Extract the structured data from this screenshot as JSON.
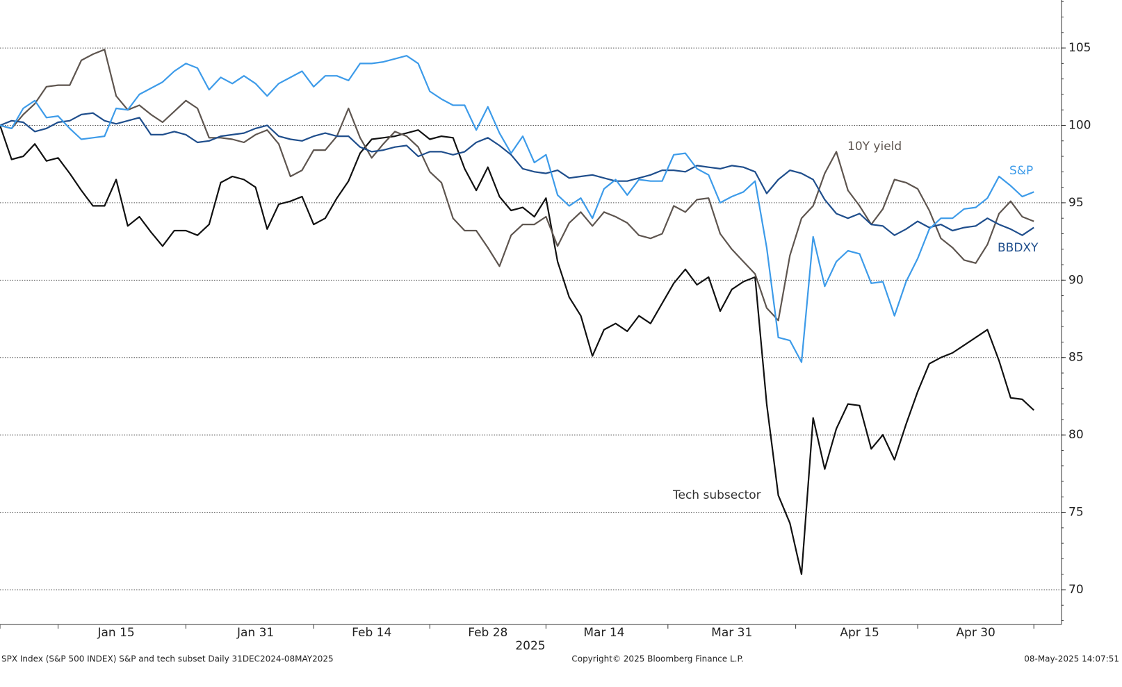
{
  "chart_data": {
    "type": "line",
    "x_label": "2025",
    "footer_left": "SPX Index (S&P 500 INDEX) S&P and tech subset  Daily 31DEC2024-08MAY2025",
    "footer_center": "Copyright© 2025 Bloomberg Finance L.P.",
    "footer_right": "08-May-2025 14:07:51",
    "categories": [
      null,
      null,
      null,
      null,
      null,
      null,
      null,
      null,
      null,
      null,
      "Jan 15",
      null,
      null,
      null,
      null,
      null,
      null,
      null,
      null,
      null,
      null,
      null,
      "Jan 31",
      null,
      null,
      null,
      null,
      null,
      null,
      null,
      null,
      null,
      "Feb 14",
      null,
      null,
      null,
      null,
      null,
      null,
      null,
      null,
      null,
      "Feb 28",
      null,
      null,
      null,
      null,
      null,
      null,
      null,
      null,
      null,
      "Mar 14",
      null,
      null,
      null,
      null,
      null,
      null,
      null,
      null,
      null,
      null,
      "Mar 31",
      null,
      null,
      null,
      null,
      null,
      null,
      null,
      null,
      null,
      null,
      "Apr 15",
      null,
      null,
      null,
      null,
      null,
      null,
      null,
      null,
      null,
      "Apr 30",
      null,
      null,
      null,
      null,
      null
    ],
    "series": [
      {
        "name": "S&P",
        "color": "#3d9be9",
        "values": [
          100,
          99.8,
          101.1,
          101.6,
          100.5,
          100.6,
          99.8,
          99.1,
          99.2,
          99.3,
          101.1,
          101.0,
          102.0,
          102.4,
          102.8,
          103.5,
          104.0,
          103.7,
          102.3,
          103.1,
          102.7,
          103.2,
          102.7,
          101.9,
          102.7,
          103.1,
          103.5,
          102.5,
          103.2,
          103.2,
          102.9,
          104.0,
          104.0,
          104.1,
          104.3,
          104.5,
          104.0,
          102.2,
          101.7,
          101.3,
          101.3,
          99.7,
          101.2,
          99.5,
          98.2,
          99.3,
          97.6,
          98.1,
          95.5,
          94.8,
          95.3,
          94.0,
          95.9,
          96.5,
          95.5,
          96.5,
          96.4,
          96.4,
          98.1,
          98.2,
          97.2,
          96.8,
          95.0,
          95.4,
          95.7,
          96.4,
          92.1,
          86.3,
          86.1,
          84.7,
          92.8,
          89.6,
          91.2,
          91.9,
          91.7,
          89.8,
          89.9,
          87.7,
          89.9,
          91.4,
          93.3,
          94.0,
          94.0,
          94.6,
          94.7,
          95.3,
          96.7,
          96.1,
          95.4,
          95.7
        ]
      },
      {
        "name": "BBDXY",
        "color": "#1f4e8c",
        "values": [
          100,
          100.3,
          100.2,
          99.6,
          99.8,
          100.2,
          100.3,
          100.7,
          100.8,
          100.3,
          100.1,
          100.3,
          100.5,
          99.4,
          99.4,
          99.6,
          99.4,
          98.9,
          99.0,
          99.3,
          99.4,
          99.5,
          99.8,
          100.0,
          99.3,
          99.1,
          99.0,
          99.3,
          99.5,
          99.3,
          99.3,
          98.6,
          98.3,
          98.4,
          98.6,
          98.7,
          98.0,
          98.3,
          98.3,
          98.1,
          98.3,
          98.9,
          99.2,
          98.7,
          98.1,
          97.2,
          97.0,
          96.9,
          97.1,
          96.6,
          96.7,
          96.8,
          96.6,
          96.4,
          96.4,
          96.6,
          96.8,
          97.1,
          97.1,
          97.0,
          97.4,
          97.3,
          97.2,
          97.4,
          97.3,
          97.0,
          95.6,
          96.5,
          97.1,
          96.9,
          96.5,
          95.2,
          94.3,
          94.0,
          94.3,
          93.6,
          93.5,
          92.9,
          93.3,
          93.8,
          93.4,
          93.6,
          93.2,
          93.4,
          93.5,
          94.0,
          93.6,
          93.3,
          92.9,
          93.4
        ]
      },
      {
        "name": "10Y yield",
        "color": "#5e554f",
        "values": [
          100,
          99.8,
          100.7,
          101.4,
          102.5,
          102.6,
          102.6,
          104.2,
          104.6,
          104.9,
          101.9,
          101.0,
          101.3,
          100.7,
          100.2,
          100.9,
          101.6,
          101.1,
          99.2,
          99.2,
          99.1,
          98.9,
          99.4,
          99.7,
          98.8,
          96.7,
          97.1,
          98.4,
          98.4,
          99.3,
          101.1,
          99.2,
          97.9,
          98.8,
          99.6,
          99.3,
          98.6,
          97.0,
          96.3,
          94.0,
          93.2,
          93.2,
          92.1,
          90.9,
          92.9,
          93.6,
          93.6,
          94.1,
          92.2,
          93.7,
          94.4,
          93.5,
          94.4,
          94.1,
          93.7,
          92.9,
          92.7,
          93.0,
          94.8,
          94.4,
          95.2,
          95.3,
          93.0,
          92.0,
          91.2,
          90.4,
          88.2,
          87.4,
          91.6,
          94.0,
          94.8,
          96.9,
          98.3,
          95.8,
          94.8,
          93.6,
          94.6,
          96.5,
          96.3,
          95.9,
          94.5,
          92.7,
          92.1,
          91.3,
          91.1,
          92.3,
          94.3,
          95.1,
          94.1,
          93.8
        ]
      },
      {
        "name": "Tech subsector",
        "color": "#111111",
        "values": [
          100,
          97.8,
          98.0,
          98.8,
          97.7,
          97.9,
          96.9,
          95.8,
          94.8,
          94.8,
          96.5,
          93.5,
          94.1,
          93.1,
          92.2,
          93.2,
          93.2,
          92.9,
          93.6,
          96.3,
          96.7,
          96.5,
          96.0,
          93.3,
          94.9,
          95.1,
          95.4,
          93.6,
          94.0,
          95.3,
          96.4,
          98.2,
          99.1,
          99.2,
          99.3,
          99.5,
          99.7,
          99.1,
          99.3,
          99.2,
          97.2,
          95.8,
          97.3,
          95.4,
          94.5,
          94.7,
          94.1,
          95.3,
          91.2,
          88.9,
          87.7,
          85.1,
          86.8,
          87.2,
          86.7,
          87.7,
          87.2,
          88.5,
          89.8,
          90.7,
          89.7,
          90.2,
          88.0,
          89.4,
          89.9,
          90.2,
          82.0,
          76.1,
          74.3,
          71.0,
          81.1,
          77.8,
          80.4,
          82.0,
          81.9,
          79.1,
          80.0,
          78.4,
          80.7,
          82.8,
          84.6,
          85.0,
          85.3,
          85.8,
          86.3,
          86.8,
          84.8,
          82.4,
          82.3,
          81.6
        ]
      }
    ],
    "ylim": [
      67.8,
      108.1
    ],
    "yticks": [
      70,
      75,
      80,
      85,
      90,
      95,
      100,
      105
    ],
    "grid": true,
    "y_axis_side": "right"
  }
}
